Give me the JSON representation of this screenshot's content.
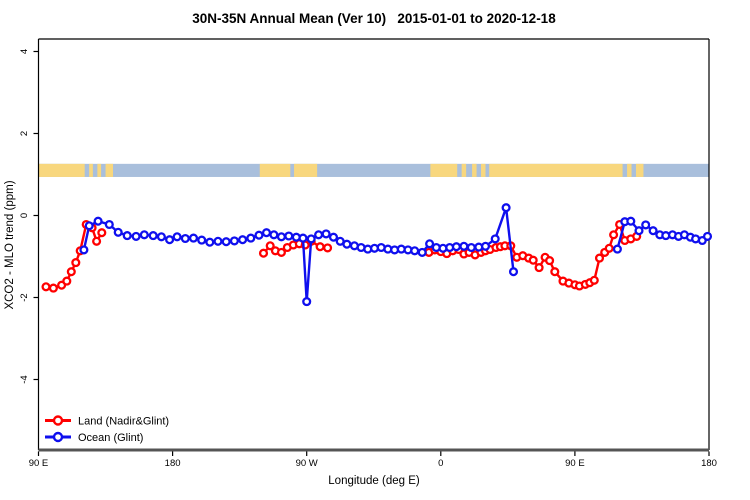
{
  "title": "30N-35N Annual Mean (Ver 10)   2015-01-01 to 2020-12-18",
  "axes": {
    "x": {
      "label": "Longitude (deg E)",
      "range_deg": [
        90,
        540
      ],
      "ticks": [
        {
          "lon": 90,
          "label": "90 E"
        },
        {
          "lon": 180,
          "label": "180"
        },
        {
          "lon": 270,
          "label": "90 W"
        },
        {
          "lon": 360,
          "label": "0"
        },
        {
          "lon": 450,
          "label": "90 E"
        },
        {
          "lon": 540,
          "label": "180"
        }
      ]
    },
    "y": {
      "label": "XCO2 - MLO trend (ppm)",
      "ticks": [
        4,
        2,
        0,
        -2,
        -4
      ],
      "range": [
        -5.8,
        4.3
      ]
    }
  },
  "legend": {
    "items": [
      {
        "label": "Land (Nadir&Glint)",
        "color": "#ff0000"
      },
      {
        "label": "Ocean (Glint)",
        "color": "#0f0fee"
      }
    ]
  },
  "colors": {
    "land_series": "#ff0000",
    "ocean_series": "#0f0fee",
    "map_land": "#f8d77e",
    "map_ocean": "#a9bfdc",
    "axis_gray": "#555555",
    "box_black": "#000000"
  },
  "chart_data": {
    "type": "line",
    "title": "30N-35N Annual Mean (Ver 10)   2015-01-01 to 2020-12-18",
    "xlabel": "Longitude (deg E)",
    "ylabel": "XCO2 - MLO trend (ppm)",
    "x_axis_wrap_note": "x spans 450 deg of longitude starting at 90E, wrapping past 180 through 90W, 0, 90E to 180",
    "xlim_deg": [
      90,
      540
    ],
    "ylim": [
      -5.8,
      4.3
    ],
    "grid": false,
    "legend_position": "bottom-left-inside",
    "marker": "open-circle",
    "series": [
      {
        "name": "Land (Nadir&Glint)",
        "color": "#ff0000",
        "segments": [
          [
            [
              95,
              -1.74
            ],
            [
              100,
              -1.77
            ],
            [
              105.5,
              -1.7
            ],
            [
              109,
              -1.6
            ],
            [
              112,
              -1.37
            ],
            [
              115,
              -1.15
            ],
            [
              118,
              -0.86
            ],
            [
              122,
              -0.22
            ],
            [
              126,
              -0.3
            ],
            [
              129,
              -0.63
            ],
            [
              132.5,
              -0.42
            ]
          ],
          [
            [
              241,
              -0.92
            ],
            [
              245.5,
              -0.74
            ],
            [
              249,
              -0.86
            ],
            [
              253,
              -0.9
            ],
            [
              257,
              -0.78
            ],
            [
              261,
              -0.72
            ],
            [
              265,
              -0.69
            ],
            [
              269,
              -0.72
            ],
            [
              273,
              -0.63
            ],
            [
              279,
              -0.76
            ],
            [
              284,
              -0.79
            ]
          ],
          [
            [
              352,
              -0.9
            ],
            [
              356,
              -0.84
            ],
            [
              360,
              -0.88
            ],
            [
              364,
              -0.93
            ],
            [
              368,
              -0.86
            ],
            [
              372,
              -0.83
            ],
            [
              375.5,
              -0.94
            ],
            [
              379,
              -0.9
            ],
            [
              383,
              -0.96
            ],
            [
              387,
              -0.9
            ],
            [
              390,
              -0.86
            ],
            [
              393,
              -0.83
            ],
            [
              397,
              -0.78
            ],
            [
              400,
              -0.76
            ],
            [
              403,
              -0.74
            ],
            [
              407,
              -0.74
            ],
            [
              411,
              -1.02
            ],
            [
              415,
              -0.98
            ],
            [
              419,
              -1.04
            ],
            [
              422,
              -1.09
            ],
            [
              426,
              -1.27
            ],
            [
              430,
              -1.02
            ],
            [
              433,
              -1.1
            ],
            [
              436.5,
              -1.37
            ],
            [
              442,
              -1.6
            ],
            [
              446,
              -1.65
            ],
            [
              450,
              -1.69
            ],
            [
              453,
              -1.72
            ],
            [
              457,
              -1.68
            ],
            [
              460,
              -1.64
            ],
            [
              463,
              -1.58
            ],
            [
              466.5,
              -1.04
            ],
            [
              470,
              -0.9
            ],
            [
              473,
              -0.8
            ],
            [
              476,
              -0.47
            ],
            [
              480,
              -0.22
            ],
            [
              483.5,
              -0.61
            ],
            [
              487.5,
              -0.57
            ],
            [
              491.5,
              -0.51
            ]
          ]
        ]
      },
      {
        "name": "Ocean (Glint)",
        "color": "#0f0fee",
        "segments": [
          [
            [
              120.5,
              -0.84
            ],
            [
              124,
              -0.25
            ],
            [
              130,
              -0.14
            ],
            [
              137.5,
              -0.22
            ],
            [
              143.5,
              -0.41
            ],
            [
              149.5,
              -0.49
            ],
            [
              155.5,
              -0.51
            ],
            [
              161,
              -0.47
            ],
            [
              167,
              -0.49
            ],
            [
              172.5,
              -0.52
            ],
            [
              178,
              -0.59
            ],
            [
              183,
              -0.52
            ],
            [
              188.5,
              -0.56
            ],
            [
              194,
              -0.55
            ],
            [
              199.5,
              -0.6
            ],
            [
              205,
              -0.65
            ],
            [
              210.5,
              -0.63
            ],
            [
              216,
              -0.64
            ],
            [
              221.5,
              -0.62
            ],
            [
              227,
              -0.59
            ],
            [
              232.5,
              -0.55
            ],
            [
              238,
              -0.48
            ],
            [
              243,
              -0.42
            ],
            [
              248,
              -0.47
            ],
            [
              253,
              -0.52
            ],
            [
              258,
              -0.5
            ],
            [
              263,
              -0.53
            ],
            [
              267.5,
              -0.55
            ],
            [
              270,
              -2.1
            ],
            [
              273,
              -0.57
            ],
            [
              278,
              -0.47
            ],
            [
              283,
              -0.45
            ],
            [
              288,
              -0.53
            ],
            [
              292.5,
              -0.63
            ],
            [
              297,
              -0.7
            ],
            [
              302,
              -0.74
            ],
            [
              306.5,
              -0.78
            ],
            [
              311,
              -0.82
            ],
            [
              315.5,
              -0.8
            ],
            [
              320,
              -0.78
            ],
            [
              324.5,
              -0.82
            ],
            [
              329,
              -0.84
            ],
            [
              333.5,
              -0.82
            ],
            [
              338,
              -0.84
            ],
            [
              342.5,
              -0.86
            ],
            [
              347.5,
              -0.9
            ],
            [
              352.5,
              -0.69
            ],
            [
              357,
              -0.78
            ],
            [
              361.5,
              -0.8
            ],
            [
              366,
              -0.78
            ],
            [
              370.5,
              -0.76
            ],
            [
              375.5,
              -0.75
            ],
            [
              380.5,
              -0.78
            ],
            [
              385.5,
              -0.77
            ],
            [
              390,
              -0.75
            ],
            [
              396.5,
              -0.57
            ],
            [
              403.8,
              0.19
            ],
            [
              408.8,
              -1.37
            ]
          ],
          [
            [
              478.5,
              -0.82
            ],
            [
              483.5,
              -0.15
            ],
            [
              487.5,
              -0.14
            ],
            [
              493,
              -0.37
            ],
            [
              497.5,
              -0.23
            ],
            [
              502.5,
              -0.37
            ],
            [
              507,
              -0.47
            ],
            [
              511,
              -0.49
            ],
            [
              515.5,
              -0.47
            ],
            [
              519.5,
              -0.51
            ],
            [
              523.5,
              -0.47
            ],
            [
              527.5,
              -0.53
            ],
            [
              531,
              -0.57
            ],
            [
              535.5,
              -0.61
            ],
            [
              539,
              -0.51
            ]
          ]
        ]
      }
    ],
    "map_strip": {
      "description": "horizontal world-map band showing land vs ocean along 30N-35N",
      "value_top": 1.26,
      "value_bottom": 0.94,
      "ocean_color": "#a9bfdc",
      "land_color": "#f8d77e",
      "land_segments_deg": [
        [
          90,
          121
        ],
        [
          124,
          126.5
        ],
        [
          129.5,
          132
        ],
        [
          135,
          140
        ],
        [
          238.5,
          259
        ],
        [
          261.5,
          277
        ],
        [
          353,
          371
        ],
        [
          374,
          377
        ],
        [
          381,
          384
        ],
        [
          387,
          390
        ],
        [
          392.5,
          482
        ],
        [
          485,
          488
        ],
        [
          491,
          496
        ]
      ]
    }
  }
}
